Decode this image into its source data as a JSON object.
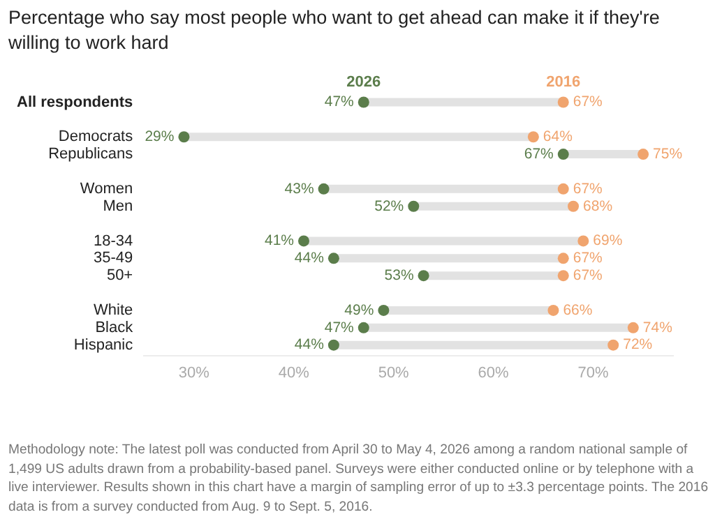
{
  "chart_data": {
    "type": "scatter",
    "orientation": "horizontal",
    "title": "Percentage who say most people who want to get ahead can make it if they're willing to work hard",
    "categories": [
      "All respondents",
      null,
      "Democrats",
      "Republicans",
      null,
      "Women",
      "Men",
      null,
      "18-34",
      "35-49",
      "50+",
      null,
      "White",
      "Black",
      "Hispanic"
    ],
    "series": [
      {
        "name": "2026",
        "color": "#5b7d4b",
        "values": [
          47,
          null,
          29,
          67,
          null,
          43,
          52,
          null,
          41,
          44,
          53,
          null,
          49,
          47,
          44
        ],
        "value_labels": [
          "47%",
          null,
          "29%",
          "67%",
          null,
          "43%",
          "52%",
          null,
          "41%",
          "44%",
          "53%",
          null,
          "49%",
          "47%",
          "44%"
        ]
      },
      {
        "name": "2016",
        "color": "#f0a46e",
        "values": [
          67,
          null,
          64,
          75,
          null,
          67,
          68,
          null,
          69,
          67,
          67,
          null,
          66,
          74,
          72
        ],
        "value_labels": [
          "67%",
          null,
          "64%",
          "75%",
          null,
          "67%",
          "68%",
          null,
          "69%",
          "67%",
          "67%",
          null,
          "66%",
          "74%",
          "72%"
        ]
      }
    ],
    "xlim": [
      25,
      78
    ],
    "xticks": [
      {
        "value": 30,
        "label": "30%"
      },
      {
        "value": 40,
        "label": "40%"
      },
      {
        "value": 50,
        "label": "50%"
      },
      {
        "value": 60,
        "label": "60%"
      },
      {
        "value": 70,
        "label": "70%"
      }
    ],
    "grid": false,
    "legend": false,
    "marker": "circle",
    "annotations": [
      "Methodology note: The latest poll was conducted from April 30 to May 4, 2026 among a random national sample of 1,499 US adults drawn from a probability-based panel. Surveys were either conducted online or by telephone with a live interviewer. Results shown in this chart have a margin of sampling error of up to ±3.3 percentage points. The 2016 data is from a survey conducted from Aug. 9 to Sept. 5, 2016."
    ]
  }
}
